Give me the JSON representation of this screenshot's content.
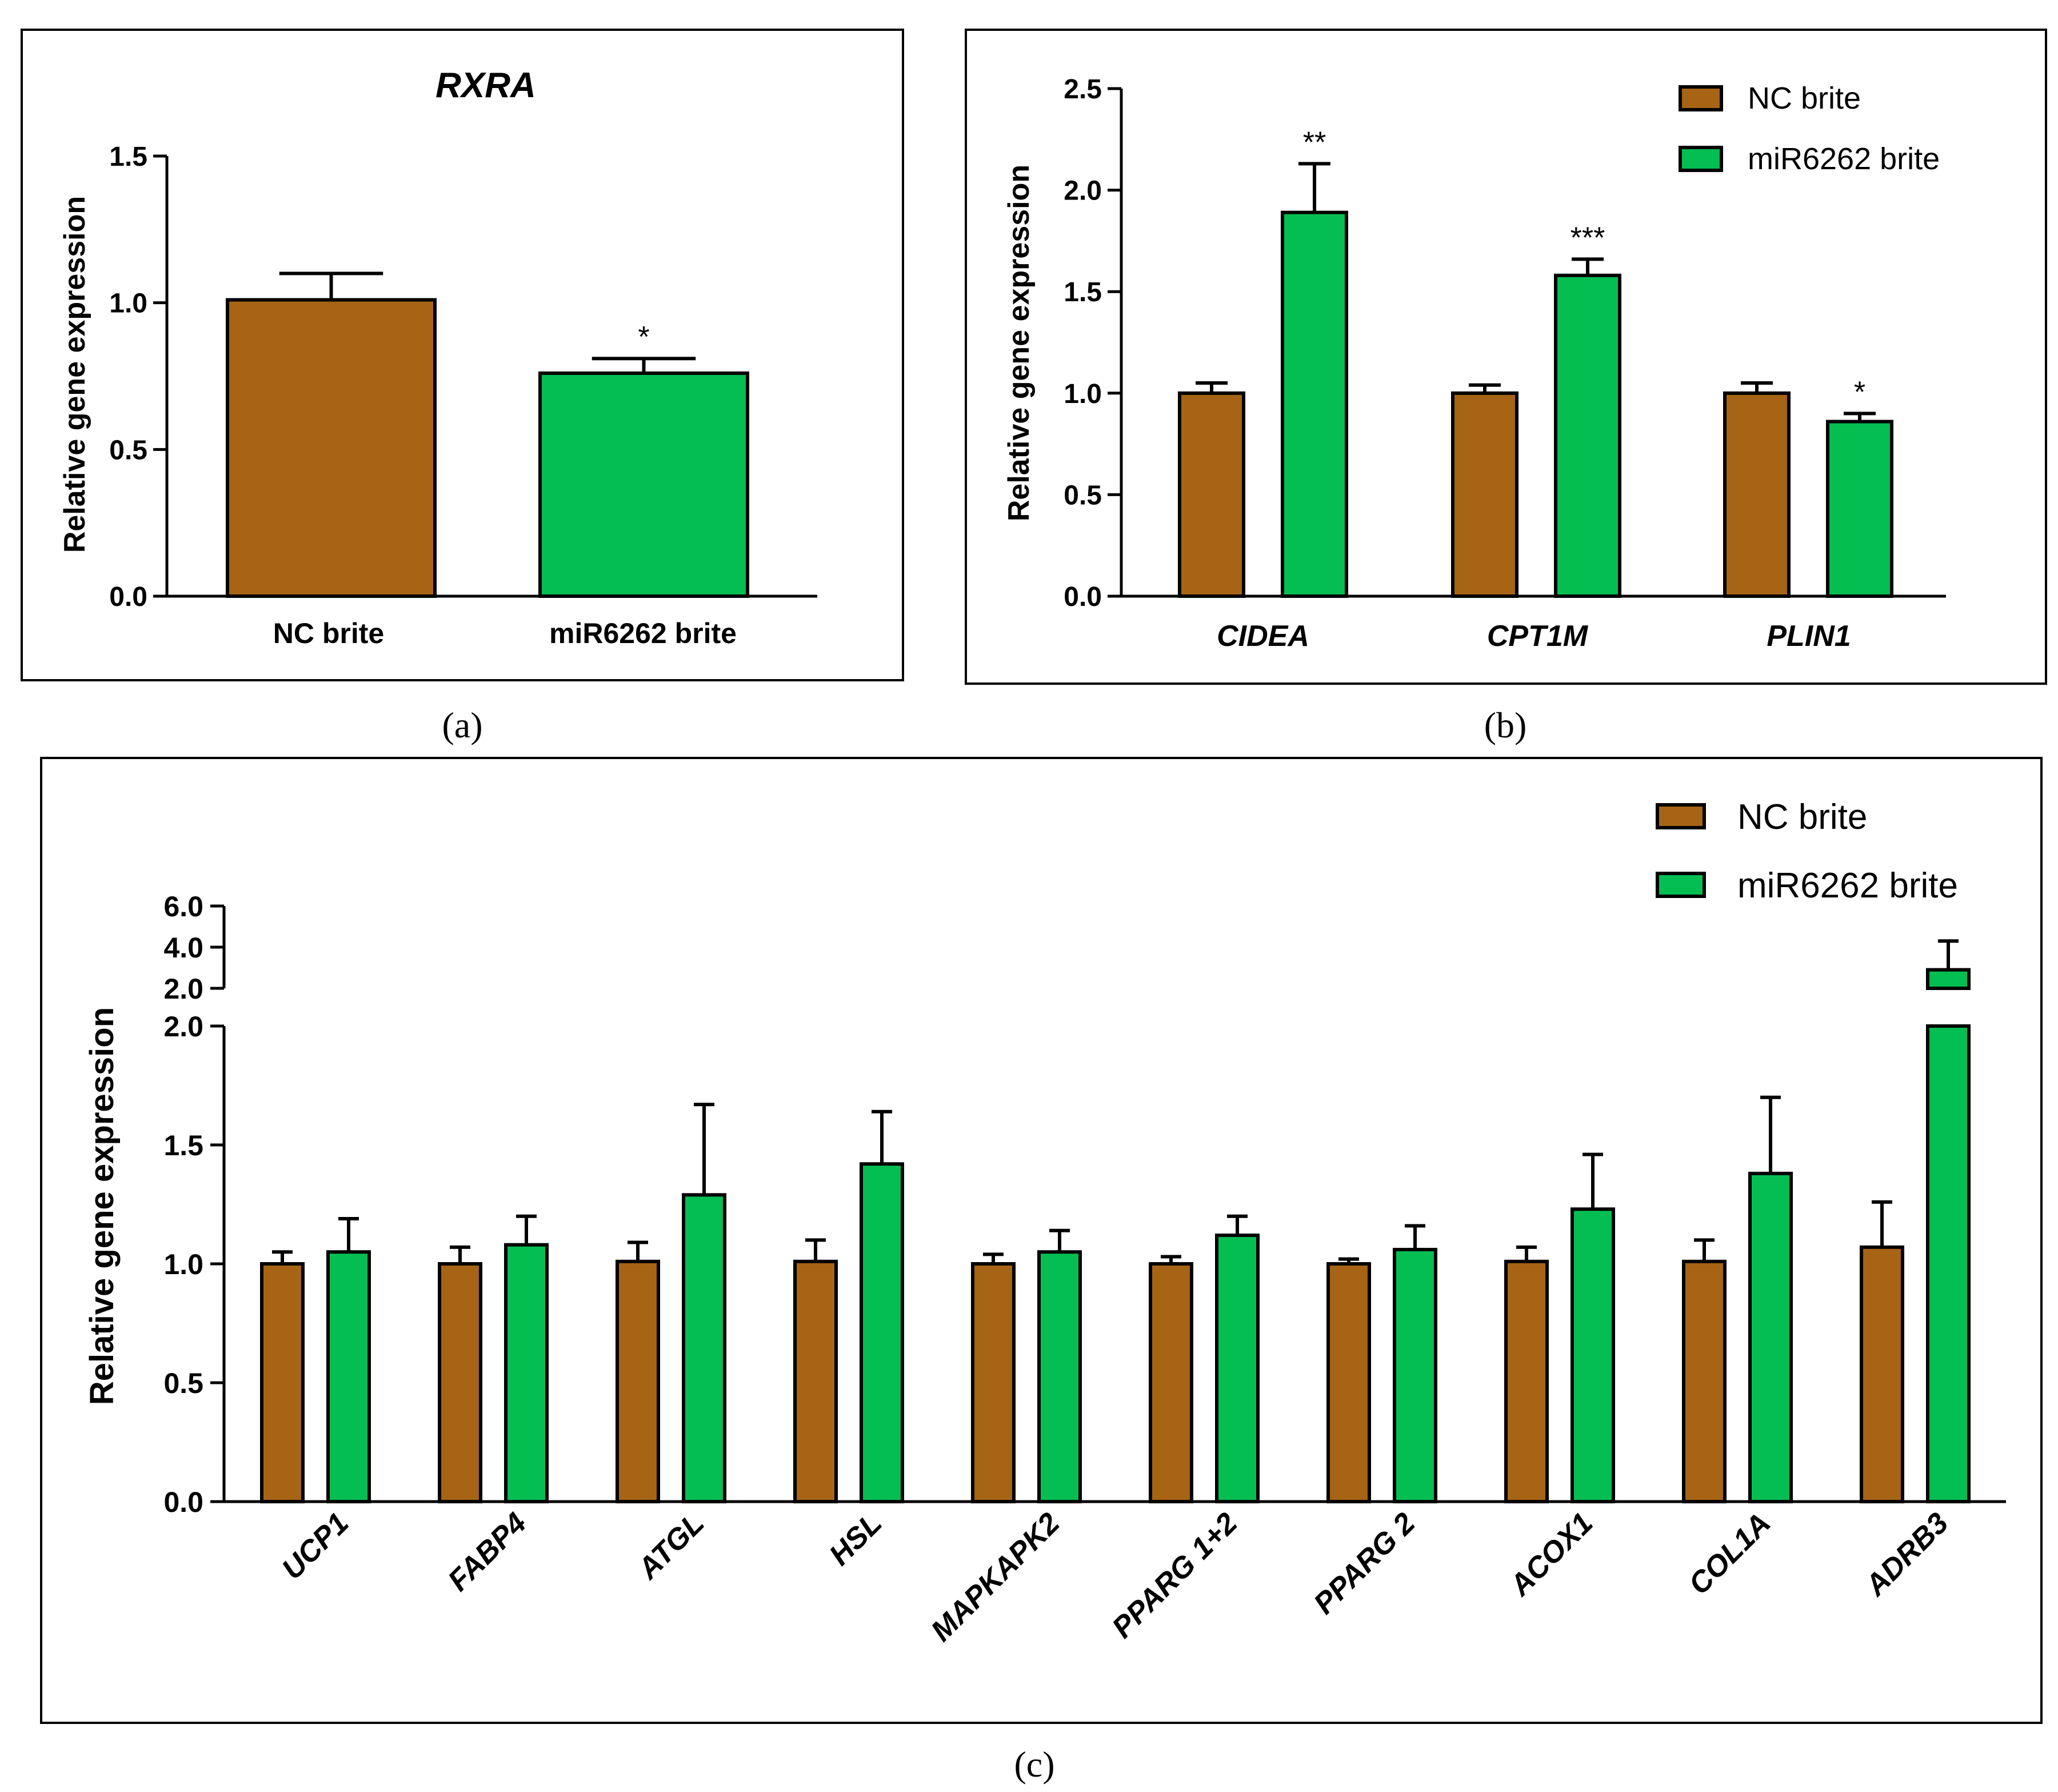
{
  "colors": {
    "nc": "#A66414",
    "mir": "#04BE52",
    "axis": "#000000"
  },
  "chart_data": [
    {
      "type": "bar",
      "panel": "(a)",
      "title": "RXRA",
      "ylabel": "Relative gene expression",
      "xlabel": "",
      "ylim": [
        0,
        1.5
      ],
      "yticks": [
        "0.0",
        "0.5",
        "1.0",
        "1.5"
      ],
      "categories": [
        "NC brite",
        "miR6262 brite"
      ],
      "values": [
        1.01,
        0.76
      ],
      "errors": [
        0.09,
        0.05
      ],
      "significance": [
        "",
        "*"
      ]
    },
    {
      "type": "bar",
      "panel": "(b)",
      "ylabel": "Relative gene expression",
      "ylim": [
        0,
        2.5
      ],
      "yticks": [
        "0.0",
        "0.5",
        "1.0",
        "1.5",
        "2.0",
        "2.5"
      ],
      "categories": [
        "CIDEA",
        "CPT1M",
        "PLIN1"
      ],
      "legend": {
        "position": "top-right",
        "entries": [
          "NC brite",
          "miR6262 brite"
        ]
      },
      "series": [
        {
          "name": "NC brite",
          "values": [
            1.0,
            1.0,
            1.0
          ],
          "errors": [
            0.05,
            0.04,
            0.05
          ],
          "significance": [
            "",
            "",
            ""
          ]
        },
        {
          "name": "miR6262 brite",
          "values": [
            1.89,
            1.58,
            0.86
          ],
          "errors": [
            0.24,
            0.08,
            0.04
          ],
          "significance": [
            "**",
            "***",
            "*"
          ]
        }
      ]
    },
    {
      "type": "bar",
      "panel": "(c)",
      "ylabel": "Relative gene expression",
      "ylim": [
        0,
        6.0
      ],
      "axis_break": {
        "lower_range": [
          0,
          2.0
        ],
        "upper_range": [
          2.0,
          6.0
        ]
      },
      "yticks_lower": [
        "0.0",
        "0.5",
        "1.0",
        "1.5",
        "2.0"
      ],
      "yticks_upper": [
        "2.0",
        "4.0",
        "6.0"
      ],
      "categories": [
        "UCP1",
        "FABP4",
        "ATGL",
        "HSL",
        "MAPKAPK2",
        "PPARG 1+2",
        "PPARG 2",
        "ACOX1",
        "COL1A",
        "ADRB3"
      ],
      "legend": {
        "position": "top-right",
        "entries": [
          "NC brite",
          "miR6262 brite"
        ]
      },
      "series": [
        {
          "name": "NC brite",
          "values": [
            1.0,
            1.0,
            1.01,
            1.01,
            1.0,
            1.0,
            1.0,
            1.01,
            1.01,
            1.07
          ],
          "errors": [
            0.05,
            0.07,
            0.08,
            0.09,
            0.04,
            0.03,
            0.02,
            0.06,
            0.09,
            0.19
          ]
        },
        {
          "name": "miR6262 brite",
          "values": [
            1.05,
            1.08,
            1.29,
            1.42,
            1.05,
            1.12,
            1.06,
            1.23,
            1.38,
            2.9
          ],
          "errors": [
            0.14,
            0.12,
            0.38,
            0.22,
            0.09,
            0.08,
            0.1,
            0.23,
            0.32,
            1.4
          ]
        }
      ]
    }
  ],
  "panel_labels": {
    "a": "(a)",
    "b": "(b)",
    "c": "(c)"
  }
}
